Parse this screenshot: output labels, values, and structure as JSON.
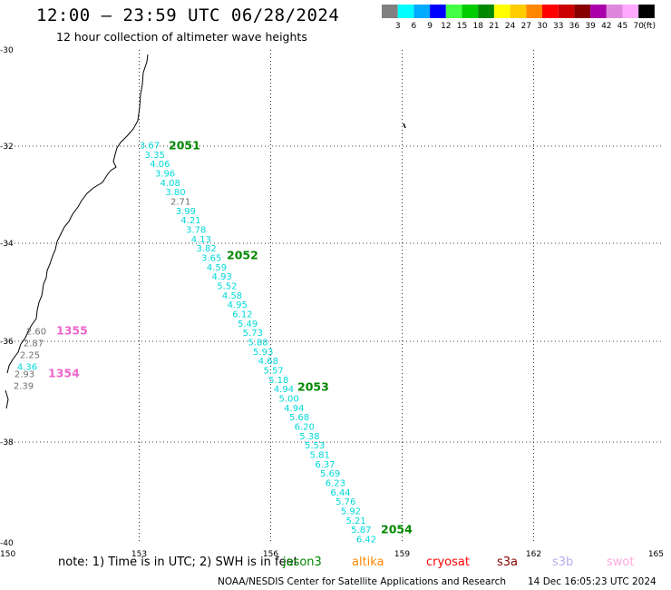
{
  "header": {
    "title": "12:00 – 23:59 UTC 06/28/2024",
    "subtitle": "12 hour collection of altimeter wave heights"
  },
  "legend": {
    "unit": "(ft)",
    "bins": [
      {
        "label": "3",
        "color": "#808080"
      },
      {
        "label": "6",
        "color": "#00ffff"
      },
      {
        "label": "9",
        "color": "#00aaff"
      },
      {
        "label": "12",
        "color": "#0000ff"
      },
      {
        "label": "15",
        "color": "#44ff44"
      },
      {
        "label": "18",
        "color": "#00cc00"
      },
      {
        "label": "21",
        "color": "#008800"
      },
      {
        "label": "24",
        "color": "#ffff00"
      },
      {
        "label": "27",
        "color": "#ffcc00"
      },
      {
        "label": "30",
        "color": "#ff8800"
      },
      {
        "label": "33",
        "color": "#ff0000"
      },
      {
        "label": "36",
        "color": "#cc0000"
      },
      {
        "label": "39",
        "color": "#880000"
      },
      {
        "label": "42",
        "color": "#aa00aa"
      },
      {
        "label": "45",
        "color": "#dd88dd"
      },
      {
        "label": "70",
        "color": "#ffaaff"
      },
      {
        "label": "",
        "color": "#000000"
      }
    ]
  },
  "axes": {
    "lon_ticks": [
      "150",
      "153",
      "156",
      "159",
      "162",
      "165"
    ],
    "lat_ticks": [
      "-30",
      "-32",
      "-34",
      "-36",
      "-38",
      "-40"
    ]
  },
  "colors": {
    "cyan": "#00d8d8",
    "gray": "#707070",
    "pass_green": "#008800",
    "pass_pink": "#ee66cc",
    "coast": "#000000",
    "grid": "#000000"
  },
  "track_main": {
    "values": [
      "3.67",
      "3.35",
      "4.06",
      "3.96",
      "4.08",
      "3.80",
      "2.71",
      "3.99",
      "4.21",
      "3.78",
      "4.13",
      "3.82",
      "3.65",
      "4.59",
      "4.93",
      "5.52",
      "4.58",
      "4.95",
      "6.12",
      "5.49",
      "5.73",
      "5.88",
      "5.93",
      "4.68",
      "5.57",
      "5.18",
      "4.94",
      "5.00",
      "4.94",
      "5.68",
      "6.20",
      "5.38",
      "5.53",
      "5.81",
      "6.37",
      "5.69",
      "6.23",
      "6.44",
      "5.76",
      "5.92",
      "5.21",
      "5.87",
      "6.42"
    ],
    "gray_values": [
      "2.71"
    ]
  },
  "track_coast": {
    "values": [
      "2.60",
      "2.87",
      "2.25",
      "4.36",
      "2.93",
      "2.39"
    ],
    "cyan_values": [
      "4.36"
    ]
  },
  "pass_labels": [
    {
      "text": "2051",
      "color": "green"
    },
    {
      "text": "2052",
      "color": "green"
    },
    {
      "text": "2053",
      "color": "green"
    },
    {
      "text": "2054",
      "color": "green"
    },
    {
      "text": "1355",
      "color": "pink"
    },
    {
      "text": "1354",
      "color": "pink"
    }
  ],
  "footer": {
    "note": "note:  1) Time is in UTC;  2) SWH is in feet",
    "satellites": [
      {
        "name": "jason3",
        "color": "#008800"
      },
      {
        "name": "altika",
        "color": "#ff8800"
      },
      {
        "name": "cryosat",
        "color": "#ff0000"
      },
      {
        "name": "s3a",
        "color": "#880000"
      },
      {
        "name": "s3b",
        "color": "#bbaaee"
      },
      {
        "name": "swot",
        "color": "#ffaadd"
      }
    ],
    "credit": "NOAA/NESDIS Center for Satellite Applications and Research",
    "credit_date": "14 Dec 16:05:23 UTC 2024"
  }
}
